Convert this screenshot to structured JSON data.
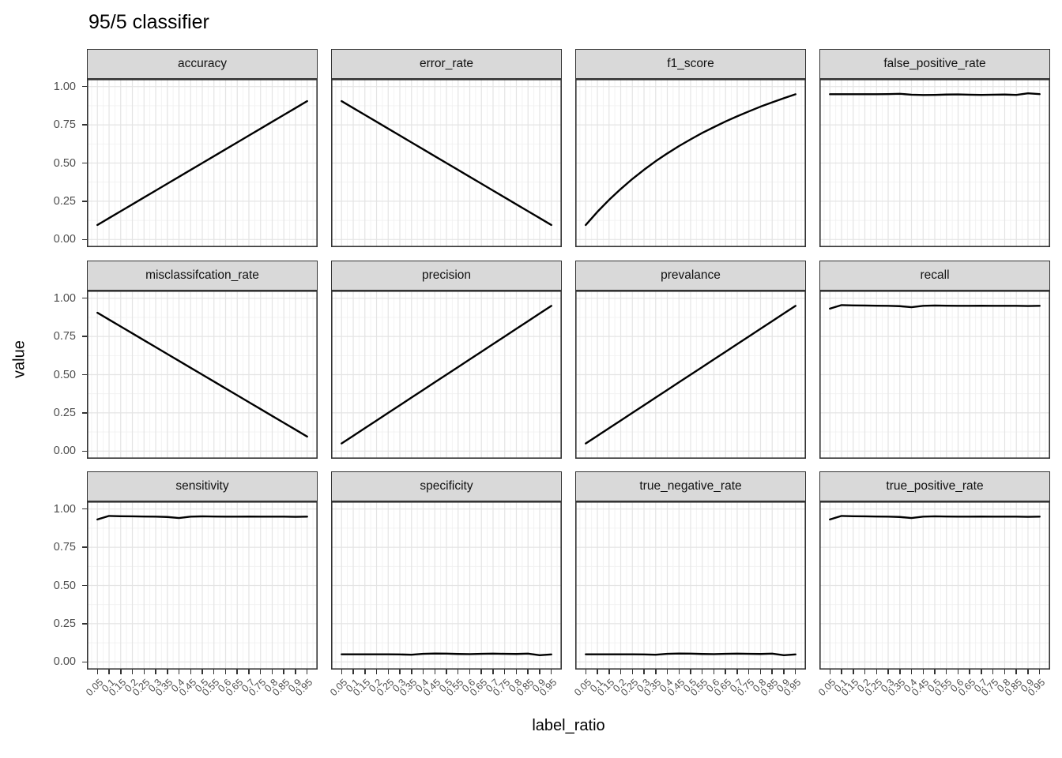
{
  "title": "95/5 classifier",
  "colors": {
    "strip_bg": "#d9d9d9",
    "strip_border": "#333333",
    "panel_bg": "#ffffff",
    "panel_border": "#333333",
    "grid_major": "#e4e4e4",
    "grid_minor": "#f1f1f1",
    "line": "#000000",
    "tick_mark": "#333333",
    "tick_label": "#4d4d4d"
  },
  "chart_data": {
    "type": "line",
    "title": "95/5 classifier",
    "xlabel": "label_ratio",
    "ylabel": "value",
    "legend_position": "none",
    "grid": "on",
    "xlim": [
      0.05,
      0.95
    ],
    "ylim": [
      0,
      1
    ],
    "x": [
      0.05,
      0.1,
      0.15,
      0.2,
      0.25,
      0.3,
      0.35,
      0.4,
      0.45,
      0.5,
      0.55,
      0.6,
      0.65,
      0.7,
      0.75,
      0.8,
      0.85,
      0.9,
      0.95
    ],
    "x_tick_labels": [
      "0.05",
      "0.1",
      "0.15",
      "0.2",
      "0.25",
      "0.3",
      "0.35",
      "0.4",
      "0.45",
      "0.5",
      "0.55",
      "0.6",
      "0.65",
      "0.7",
      "0.75",
      "0.8",
      "0.85",
      "0.9",
      "0.95"
    ],
    "y_tick_labels": [
      "1.00",
      "0.75",
      "0.50",
      "0.25",
      "0.00"
    ],
    "y_tick_values": [
      1.0,
      0.75,
      0.5,
      0.25,
      0.0
    ],
    "y_major_gridlines": [
      0,
      0.25,
      0.5,
      0.75,
      1.0
    ],
    "y_minor_gridlines": [
      0.125,
      0.375,
      0.625,
      0.875
    ],
    "facets": [
      {
        "name": "accuracy",
        "values": [
          0.095,
          0.14,
          0.185,
          0.23,
          0.275,
          0.32,
          0.365,
          0.41,
          0.455,
          0.5,
          0.545,
          0.59,
          0.635,
          0.68,
          0.725,
          0.77,
          0.815,
          0.86,
          0.905
        ]
      },
      {
        "name": "error_rate",
        "values": [
          0.905,
          0.86,
          0.815,
          0.77,
          0.725,
          0.68,
          0.635,
          0.59,
          0.545,
          0.5,
          0.455,
          0.41,
          0.365,
          0.32,
          0.275,
          0.23,
          0.185,
          0.14,
          0.095
        ]
      },
      {
        "name": "f1_score",
        "values": [
          0.095,
          0.181,
          0.259,
          0.33,
          0.396,
          0.456,
          0.512,
          0.563,
          0.611,
          0.655,
          0.697,
          0.735,
          0.772,
          0.806,
          0.838,
          0.869,
          0.897,
          0.924,
          0.95
        ]
      },
      {
        "name": "false_positive_rate",
        "values": [
          0.95,
          0.95,
          0.95,
          0.95,
          0.95,
          0.951,
          0.953,
          0.947,
          0.945,
          0.946,
          0.948,
          0.949,
          0.947,
          0.946,
          0.947,
          0.948,
          0.946,
          0.956,
          0.951
        ]
      },
      {
        "name": "misclassifcation_rate",
        "values": [
          0.905,
          0.86,
          0.815,
          0.77,
          0.725,
          0.68,
          0.635,
          0.59,
          0.545,
          0.5,
          0.455,
          0.41,
          0.365,
          0.32,
          0.275,
          0.23,
          0.185,
          0.14,
          0.095
        ]
      },
      {
        "name": "precision",
        "values": [
          0.05,
          0.1,
          0.15,
          0.2,
          0.25,
          0.3,
          0.35,
          0.4,
          0.45,
          0.5,
          0.55,
          0.6,
          0.65,
          0.7,
          0.75,
          0.8,
          0.85,
          0.9,
          0.95
        ]
      },
      {
        "name": "prevalance",
        "values": [
          0.05,
          0.1,
          0.15,
          0.2,
          0.25,
          0.3,
          0.35,
          0.4,
          0.45,
          0.5,
          0.55,
          0.6,
          0.65,
          0.7,
          0.75,
          0.8,
          0.85,
          0.9,
          0.95
        ]
      },
      {
        "name": "recall",
        "values": [
          0.932,
          0.955,
          0.953,
          0.952,
          0.951,
          0.95,
          0.948,
          0.941,
          0.95,
          0.952,
          0.951,
          0.95,
          0.95,
          0.951,
          0.95,
          0.95,
          0.95,
          0.949,
          0.95
        ]
      },
      {
        "name": "sensitivity",
        "values": [
          0.932,
          0.955,
          0.953,
          0.952,
          0.951,
          0.95,
          0.948,
          0.941,
          0.95,
          0.952,
          0.951,
          0.95,
          0.95,
          0.951,
          0.95,
          0.95,
          0.95,
          0.949,
          0.95
        ]
      },
      {
        "name": "specificity",
        "values": [
          0.05,
          0.05,
          0.05,
          0.05,
          0.05,
          0.049,
          0.047,
          0.053,
          0.055,
          0.054,
          0.052,
          0.051,
          0.053,
          0.054,
          0.053,
          0.052,
          0.054,
          0.044,
          0.049
        ]
      },
      {
        "name": "true_negative_rate",
        "values": [
          0.05,
          0.05,
          0.05,
          0.05,
          0.05,
          0.049,
          0.047,
          0.053,
          0.055,
          0.054,
          0.052,
          0.051,
          0.053,
          0.054,
          0.053,
          0.052,
          0.054,
          0.044,
          0.049
        ]
      },
      {
        "name": "true_positive_rate",
        "values": [
          0.932,
          0.955,
          0.953,
          0.952,
          0.951,
          0.95,
          0.948,
          0.941,
          0.95,
          0.952,
          0.951,
          0.95,
          0.95,
          0.951,
          0.95,
          0.95,
          0.95,
          0.949,
          0.95
        ]
      }
    ]
  }
}
